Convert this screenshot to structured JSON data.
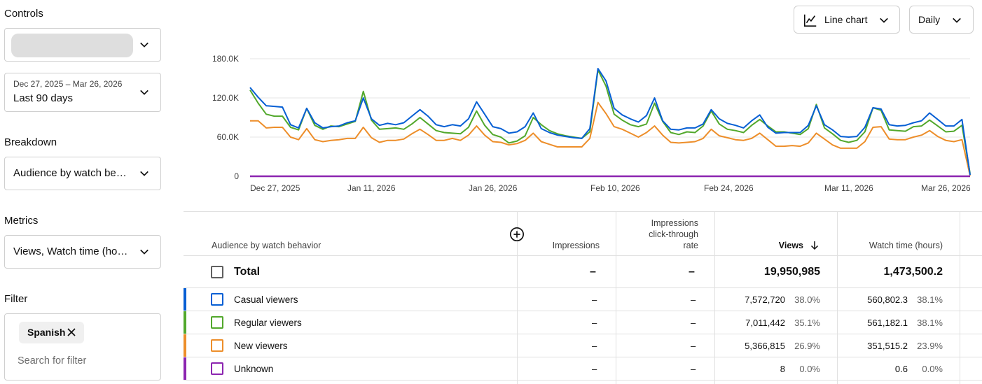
{
  "controls": {
    "title": "Controls",
    "channel_dropdown": {
      "icon": "chevron-down-icon"
    },
    "date_range": {
      "range_text": "Dec 27, 2025 – Mar 26, 2026",
      "label": "Last 90 days",
      "icon": "chevron-down-icon"
    }
  },
  "breakdown": {
    "title": "Breakdown",
    "value": "Audience by watch be…",
    "icon": "chevron-down-icon"
  },
  "metrics": {
    "title": "Metrics",
    "value": "Views, Watch time (ho…",
    "icon": "chevron-down-icon"
  },
  "filter": {
    "title": "Filter",
    "chip_label": "Spanish",
    "chip_icon": "close-icon",
    "search_placeholder": "Search for filter"
  },
  "toolbar": {
    "chart_type_label": "Line chart",
    "chart_type_icon": "line-chart-icon",
    "granularity_label": "Daily"
  },
  "chart_data": {
    "type": "line",
    "y_ticks": [
      "180.0K",
      "120.0K",
      "60.0K",
      "0"
    ],
    "ylim": [
      0,
      180000
    ],
    "x_ticks": [
      "Dec 27, 2025",
      "Jan 11, 2026",
      "Jan 26, 2026",
      "Feb 10, 2026",
      "Feb 24, 2026",
      "Mar 11, 2026",
      "Mar 26, 2026"
    ],
    "x_start": "2025-12-27",
    "days": 90,
    "grid": true,
    "series": [
      {
        "name": "Casual viewers",
        "color": "#065fd4",
        "values": [
          136000,
          121000,
          108000,
          107000,
          106000,
          79000,
          74000,
          104000,
          82000,
          74000,
          76000,
          77000,
          82000,
          85000,
          120000,
          88000,
          78000,
          81000,
          79000,
          82000,
          92000,
          102000,
          92000,
          79000,
          76000,
          79000,
          77000,
          88000,
          114000,
          95000,
          76000,
          73000,
          66000,
          68000,
          76000,
          97000,
          73000,
          67000,
          63000,
          61000,
          59000,
          58000,
          73000,
          165000,
          146000,
          104000,
          94000,
          88000,
          83000,
          93000,
          120000,
          85000,
          72000,
          71000,
          74000,
          74000,
          80000,
          102000,
          88000,
          81000,
          78000,
          74000,
          85000,
          94000,
          75000,
          66000,
          67000,
          67000,
          67000,
          78000,
          108000,
          79000,
          71000,
          61000,
          60000,
          61000,
          75000,
          105000,
          103000,
          79000,
          77000,
          78000,
          82000,
          85000,
          97000,
          87000,
          77000,
          77000,
          87000,
          2000
        ]
      },
      {
        "name": "Regular viewers",
        "color": "#52a82c",
        "values": [
          132000,
          112000,
          95000,
          92000,
          92000,
          75000,
          71000,
          104000,
          78000,
          72000,
          77000,
          76000,
          80000,
          84000,
          130000,
          86000,
          72000,
          73000,
          74000,
          72000,
          80000,
          90000,
          80000,
          70000,
          67000,
          66000,
          65000,
          75000,
          100000,
          78000,
          64000,
          60000,
          51000,
          54000,
          62000,
          90000,
          79000,
          70000,
          65000,
          62000,
          60000,
          58000,
          68000,
          163000,
          138000,
          95000,
          86000,
          79000,
          76000,
          80000,
          112000,
          84000,
          67000,
          64000,
          68000,
          67000,
          77000,
          100000,
          80000,
          72000,
          70000,
          67000,
          78000,
          87000,
          77000,
          68000,
          68000,
          66000,
          64000,
          73000,
          110000,
          74000,
          65000,
          55000,
          52000,
          55000,
          68000,
          105000,
          101000,
          71000,
          70000,
          69000,
          76000,
          77000,
          86000,
          77000,
          68000,
          69000,
          78000,
          4000
        ]
      },
      {
        "name": "New viewers",
        "color": "#ed8e2a",
        "values": [
          85000,
          85000,
          74000,
          75000,
          75000,
          60000,
          56000,
          73000,
          56000,
          53000,
          55000,
          56000,
          58000,
          58000,
          75000,
          59000,
          52000,
          55000,
          55000,
          57000,
          65000,
          72000,
          64000,
          55000,
          55000,
          58000,
          55000,
          63000,
          77000,
          63000,
          53000,
          52000,
          48000,
          50000,
          55000,
          66000,
          53000,
          49000,
          45000,
          45000,
          45000,
          45000,
          58000,
          113000,
          96000,
          76000,
          72000,
          66000,
          60000,
          67000,
          77000,
          63000,
          52000,
          51000,
          52000,
          53000,
          58000,
          72000,
          62000,
          59000,
          56000,
          55000,
          58000,
          66000,
          56000,
          46000,
          46000,
          47000,
          46000,
          51000,
          66000,
          57000,
          48000,
          43000,
          43000,
          43000,
          53000,
          75000,
          76000,
          57000,
          56000,
          56000,
          60000,
          63000,
          70000,
          61000,
          55000,
          53000,
          56000,
          1000
        ]
      },
      {
        "name": "Unknown",
        "color": "#8c25b0",
        "values": [
          0,
          0,
          0,
          0,
          0,
          0,
          0,
          0,
          0,
          0,
          0,
          0,
          0,
          0,
          0,
          0,
          0,
          0,
          0,
          0,
          0,
          0,
          0,
          0,
          0,
          0,
          0,
          0,
          0,
          0,
          0,
          0,
          0,
          0,
          0,
          0,
          0,
          0,
          0,
          0,
          0,
          0,
          0,
          0,
          0,
          0,
          0,
          0,
          0,
          0,
          0,
          0,
          0,
          0,
          0,
          0,
          0,
          0,
          0,
          0,
          0,
          0,
          0,
          0,
          0,
          0,
          0,
          0,
          0,
          0,
          0,
          0,
          0,
          0,
          0,
          0,
          0,
          0,
          0,
          0,
          0,
          0,
          0,
          0,
          0,
          0,
          0,
          0,
          0,
          0
        ]
      }
    ]
  },
  "table": {
    "headers": {
      "dimension": "Audience by watch behavior",
      "add_metric_icon": "add-circle-icon",
      "impressions": "Impressions",
      "ctr_line1": "Impressions",
      "ctr_line2": "click-through",
      "ctr_line3": "rate",
      "views": "Views",
      "views_sort_icon": "arrow-down-icon",
      "watch_time": "Watch time (hours)"
    },
    "total": {
      "label": "Total",
      "impressions": "–",
      "ctr": "–",
      "views": "19,950,985",
      "watch_time": "1,473,500.2"
    },
    "rows": [
      {
        "label": "Casual viewers",
        "color": "#065fd4",
        "impressions": "–",
        "ctr": "–",
        "views": "7,572,720",
        "views_pct": "38.0%",
        "watch_time": "560,802.3",
        "watch_pct": "38.1%"
      },
      {
        "label": "Regular viewers",
        "color": "#52a82c",
        "impressions": "–",
        "ctr": "–",
        "views": "7,011,442",
        "views_pct": "35.1%",
        "watch_time": "561,182.1",
        "watch_pct": "38.1%"
      },
      {
        "label": "New viewers",
        "color": "#ed8e2a",
        "impressions": "–",
        "ctr": "–",
        "views": "5,366,815",
        "views_pct": "26.9%",
        "watch_time": "351,515.2",
        "watch_pct": "23.9%"
      },
      {
        "label": "Unknown",
        "color": "#8c25b0",
        "impressions": "–",
        "ctr": "–",
        "views": "8",
        "views_pct": "0.0%",
        "watch_time": "0.6",
        "watch_pct": "0.0%"
      }
    ]
  }
}
